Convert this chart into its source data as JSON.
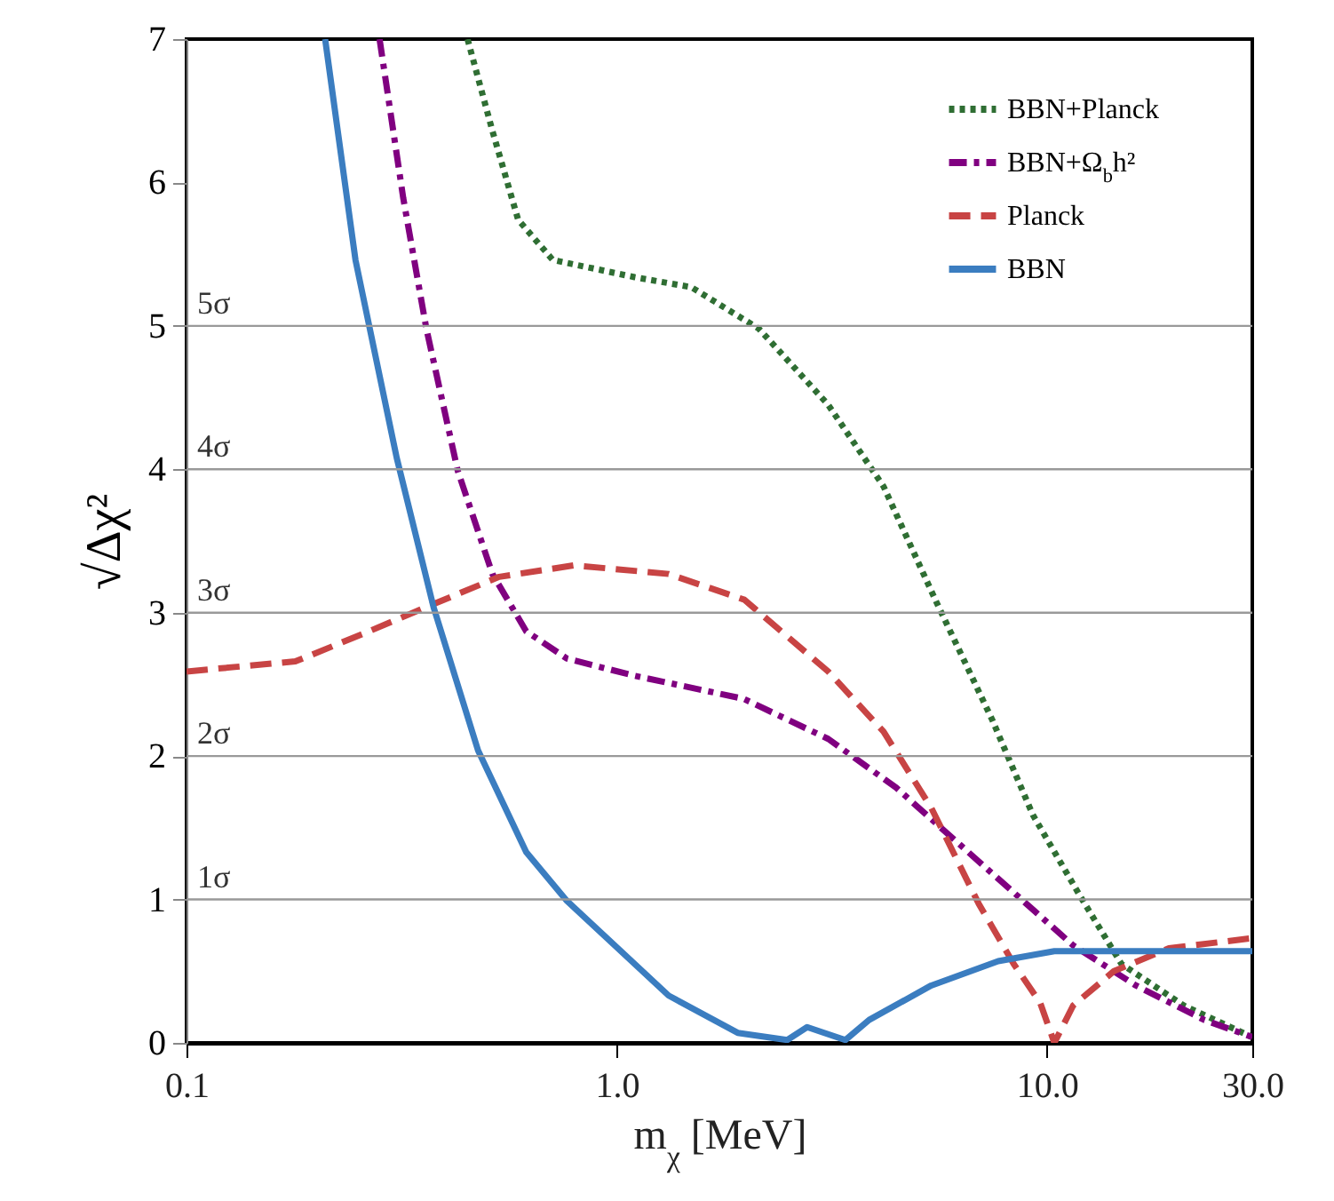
{
  "chart_data": {
    "type": "line",
    "xlabel": "m$_{χ}$ [MeV]",
    "ylabel": "√Δχ²",
    "log": "x",
    "xlim": [
      0.1,
      30
    ],
    "xticks": [
      {
        "value": 0.1,
        "label": "0.1"
      },
      {
        "value": 1,
        "label": "1.0"
      },
      {
        "value": 10,
        "label": "10.0"
      },
      {
        "value": 30,
        "label": "30.0"
      }
    ],
    "ylim": [
      0,
      7
    ],
    "yticks": [
      0,
      1,
      2,
      3,
      4,
      5,
      6,
      7
    ],
    "grid": false,
    "legend": "top right",
    "ref_lines": [
      {
        "axis": "y",
        "value": 1,
        "label": "1σ",
        "color": "#999999"
      },
      {
        "axis": "y",
        "value": 2,
        "label": "2σ",
        "color": "#999999"
      },
      {
        "axis": "y",
        "value": 3,
        "label": "3σ",
        "color": "#999999"
      },
      {
        "axis": "y",
        "value": 4,
        "label": "4σ",
        "color": "#999999"
      },
      {
        "axis": "y",
        "value": 5,
        "label": "5σ",
        "color": "#999999"
      }
    ],
    "series": [
      {
        "name": "BBN+Planck",
        "color": "#2f6e33",
        "line_style": "dotted",
        "x": [
          0.45,
          0.514,
          0.59,
          0.71,
          1.1,
          1.49,
          2.14,
          3.1,
          4.17,
          5.54,
          7.44,
          9.27,
          11.96,
          14.9,
          20.8,
          30
        ],
        "values": [
          7,
          6.36,
          5.74,
          5.46,
          5.34,
          5.27,
          4.98,
          4.45,
          3.88,
          3.07,
          2.26,
          1.59,
          1.02,
          0.55,
          0.26,
          0.04
        ]
      },
      {
        "name": "BBN+Ω$_{b}$h²",
        "color": "#800080",
        "line_style": "dashdot",
        "x": [
          0.281,
          0.319,
          0.361,
          0.427,
          0.514,
          0.616,
          0.766,
          1.1,
          1.97,
          3.1,
          4.46,
          6.45,
          9.27,
          11.5,
          16.1,
          23.2,
          30
        ],
        "values": [
          7,
          5.89,
          4.98,
          3.99,
          3.27,
          2.87,
          2.68,
          2.56,
          2.4,
          2.12,
          1.78,
          1.35,
          0.93,
          0.68,
          0.4,
          0.16,
          0.04
        ]
      },
      {
        "name": "Planck",
        "color": "#c84444",
        "line_style": "dashed",
        "x": [
          0.1,
          0.179,
          0.256,
          0.375,
          0.533,
          0.796,
          1.32,
          1.98,
          3.1,
          4.17,
          5.38,
          6.94,
          8.37,
          9.64,
          10.4,
          11.5,
          14.3,
          19.2,
          30
        ],
        "values": [
          2.59,
          2.66,
          2.85,
          3.06,
          3.25,
          3.33,
          3.27,
          3.09,
          2.59,
          2.17,
          1.64,
          0.97,
          0.55,
          0.28,
          0,
          0.26,
          0.5,
          0.66,
          0.73
        ]
      },
      {
        "name": "BBN",
        "color": "#3b7dc0",
        "line_style": "solid",
        "x": [
          0.21,
          0.247,
          0.308,
          0.375,
          0.476,
          0.616,
          0.766,
          1.32,
          1.91,
          2.49,
          2.77,
          3.4,
          3.86,
          5.38,
          7.7,
          10.4,
          19.2,
          30
        ],
        "values": [
          7,
          5.46,
          4.08,
          3.04,
          2.04,
          1.33,
          0.99,
          0.33,
          0.07,
          0.02,
          0.11,
          0.02,
          0.16,
          0.4,
          0.57,
          0.64,
          0.64,
          0.64
        ]
      }
    ]
  }
}
